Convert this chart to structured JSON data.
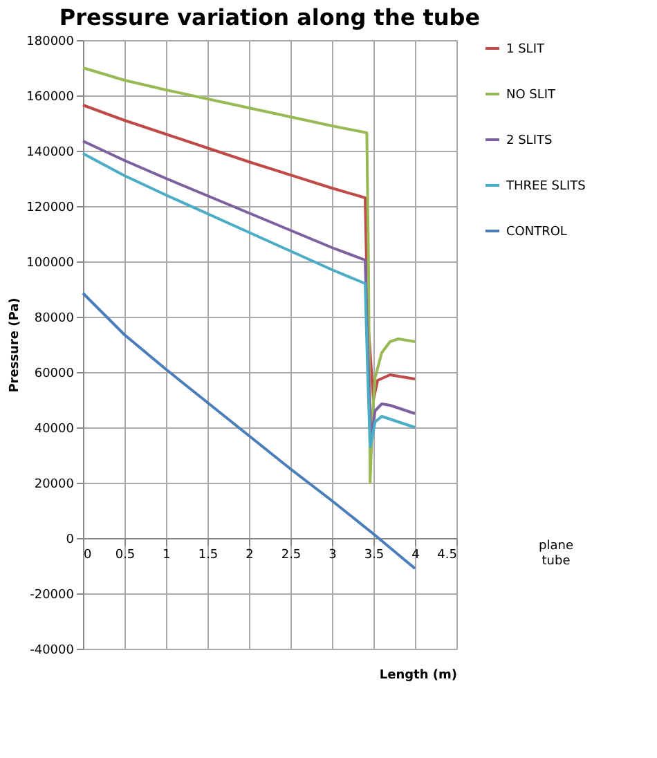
{
  "chart_data": {
    "type": "line",
    "title": "Pressure variation along the tube",
    "xlabel": "Length (m)",
    "ylabel": "Pressure (Pa)",
    "xlim": [
      0,
      4.5
    ],
    "xticks": [
      0,
      0.5,
      1,
      1.5,
      2,
      2.5,
      3,
      3.5,
      4,
      4.5
    ],
    "ylim": [
      -40000,
      180000
    ],
    "yticks": [
      -40000,
      -20000,
      0,
      20000,
      40000,
      60000,
      80000,
      100000,
      120000,
      140000,
      160000,
      180000
    ],
    "grid": true,
    "legend": "right",
    "marker": "none",
    "line_style": "solid",
    "annotations": [
      "plane tube"
    ],
    "series": [
      {
        "name": "1 SLIT",
        "color": "#be4b48",
        "x": [
          0,
          0.5,
          1,
          1.5,
          2,
          3,
          3.4,
          3.43,
          3.5,
          3.55,
          3.7,
          4
        ],
        "values": [
          156500,
          151000,
          146000,
          141000,
          136000,
          126500,
          123000,
          80000,
          50000,
          57000,
          59000,
          57500
        ]
      },
      {
        "name": "NO SLIT",
        "color": "#98b954",
        "x": [
          0,
          0.5,
          1,
          2,
          3,
          3.42,
          3.44,
          3.46,
          3.49,
          3.52,
          3.6,
          3.7,
          3.8,
          4
        ],
        "values": [
          170000,
          165500,
          162000,
          155500,
          149000,
          146500,
          100000,
          20000,
          45000,
          58000,
          67000,
          71000,
          72000,
          71000
        ]
      },
      {
        "name": "2 SLITS",
        "color": "#7d60a0",
        "x": [
          0,
          0.5,
          1,
          2,
          3,
          3.4,
          3.43,
          3.47,
          3.52,
          3.6,
          3.7,
          4
        ],
        "values": [
          143500,
          136500,
          130000,
          117500,
          105000,
          100500,
          70000,
          35000,
          46000,
          48500,
          48000,
          45000
        ]
      },
      {
        "name": "THREE SLITS",
        "color": "#4bacc6",
        "x": [
          0,
          0.5,
          1,
          2,
          3,
          3.4,
          3.43,
          3.46,
          3.52,
          3.6,
          4
        ],
        "values": [
          139000,
          131000,
          124000,
          110500,
          97000,
          92000,
          60000,
          33000,
          42000,
          44000,
          40000
        ]
      },
      {
        "name": "CONTROL",
        "color": "#4a7ebb",
        "x": [
          0,
          0.5,
          1,
          1.5,
          2,
          2.5,
          3,
          3.5,
          4
        ],
        "values": [
          88500,
          73500,
          61000,
          49000,
          37000,
          25000,
          13500,
          1500,
          -11000
        ]
      }
    ]
  }
}
